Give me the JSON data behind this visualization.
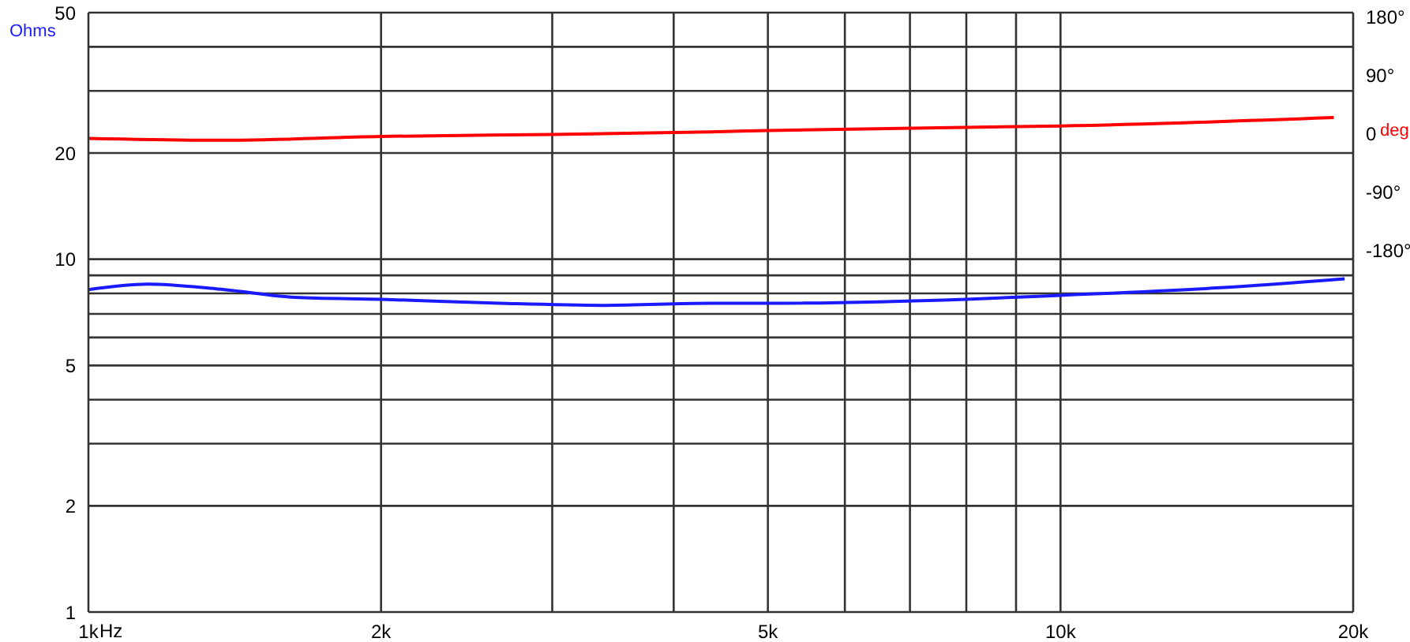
{
  "chart_data": {
    "type": "line",
    "xlabel": "Hz",
    "ylabel": "Ohms",
    "y2label": "deg",
    "log": "xy",
    "xlim": [
      1000,
      20000
    ],
    "xticks": [
      {
        "value": 1000,
        "label": "1k"
      },
      {
        "value": 2000,
        "label": "2k"
      },
      {
        "value": 3000,
        "label": null
      },
      {
        "value": 4000,
        "label": null
      },
      {
        "value": 5000,
        "label": "5k"
      },
      {
        "value": 6000,
        "label": null
      },
      {
        "value": 7000,
        "label": null
      },
      {
        "value": 8000,
        "label": null
      },
      {
        "value": 9000,
        "label": null
      },
      {
        "value": 10000,
        "label": "10k"
      },
      {
        "value": 20000,
        "label": "20k"
      }
    ],
    "ylim": [
      1,
      50
    ],
    "yticks": [
      1,
      2,
      {
        "value": 3,
        "label": null
      },
      {
        "value": 4,
        "label": null
      },
      5,
      {
        "value": 6,
        "label": null
      },
      {
        "value": 7,
        "label": null
      },
      {
        "value": 8,
        "label": null
      },
      {
        "value": 9,
        "label": null
      },
      10,
      20,
      {
        "value": 30,
        "label": null
      },
      {
        "value": 40,
        "label": null
      },
      50
    ],
    "y2lim": [
      -738,
      187
    ],
    "y2ticks": [
      {
        "value": 180,
        "label": "180°"
      },
      {
        "value": 90,
        "label": "90°"
      },
      0,
      {
        "value": -90,
        "label": "-90°"
      },
      {
        "value": -180,
        "label": "-180°"
      }
    ],
    "grid": true,
    "legend": false,
    "marker": "none",
    "line_style": "solid",
    "series": [
      {
        "color": "#1a1aff",
        "x": [
          1000,
          1150,
          1380,
          1630,
          2000,
          2650,
          3400,
          4360,
          5000,
          8000,
          10000,
          14600,
          19600
        ],
        "values": [
          8.2,
          8.5,
          8.2,
          7.8,
          7.7,
          7.5,
          7.4,
          7.5,
          7.5,
          7.7,
          7.9,
          8.3,
          8.8
        ]
      },
      {
        "color": "#ff0000",
        "axis": "y2",
        "x": [
          1000,
          1380,
          2000,
          3000,
          4360,
          5000,
          8000,
          10000,
          19100
        ],
        "values": [
          -7,
          -10,
          -4,
          -1,
          3,
          5,
          10,
          12,
          25
        ]
      }
    ]
  }
}
